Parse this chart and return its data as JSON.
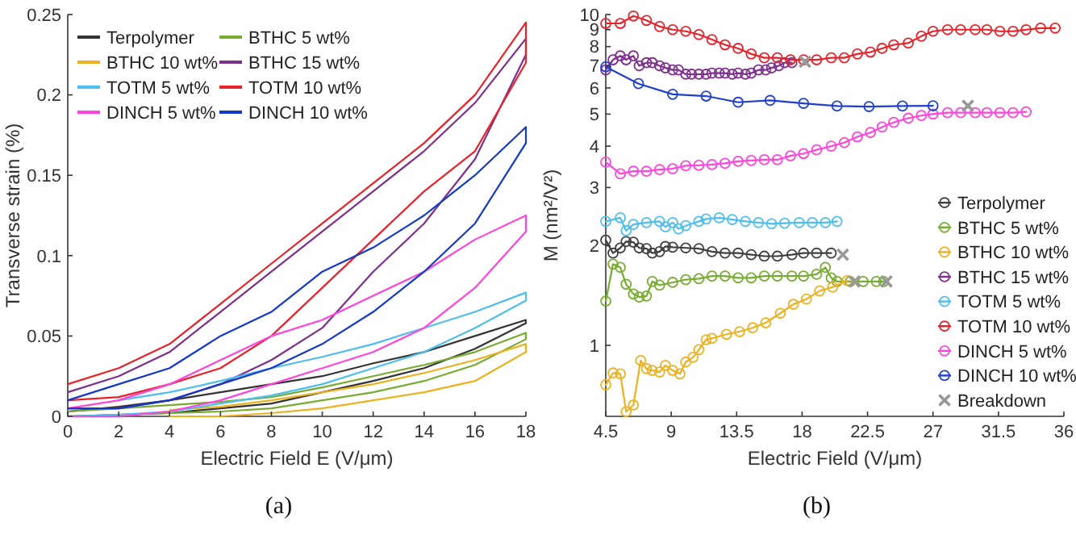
{
  "chart_data": [
    {
      "type": "line",
      "xlabel": "Electric Field E (V/μm)",
      "ylabel": "Transverse strain (%)",
      "annotations": [
        "(a)"
      ],
      "legend": "top left",
      "xlim": [
        0,
        18
      ],
      "ylim": [
        0,
        0.25
      ],
      "xticks": [
        0,
        2,
        4,
        6,
        8,
        10,
        12,
        14,
        16,
        18
      ],
      "yticks": [
        0,
        0.05,
        0.1,
        0.15,
        0.2,
        0.25
      ],
      "x": [
        0,
        2,
        4,
        6,
        8,
        10,
        12,
        14,
        16,
        18,
        18,
        16,
        14,
        12,
        10,
        8,
        6,
        4,
        2,
        0
      ],
      "series": [
        {
          "name": "Terpolymer",
          "color": "#333333",
          "values": [
            0,
            0.001,
            0.002,
            0.005,
            0.008,
            0.015,
            0.022,
            0.03,
            0.042,
            0.058,
            0.06,
            0.05,
            0.04,
            0.033,
            0.025,
            0.02,
            0.015,
            0.01,
            0.006,
            0.003
          ]
        },
        {
          "name": "BTHC 5 wt%",
          "color": "#77ac30",
          "values": [
            0,
            0.001,
            0.002,
            0.003,
            0.005,
            0.01,
            0.015,
            0.022,
            0.032,
            0.048,
            0.052,
            0.04,
            0.032,
            0.025,
            0.018,
            0.012,
            0.009,
            0.007,
            0.005,
            0.003
          ]
        },
        {
          "name": "BTHC 10 wt%",
          "color": "#edb120",
          "values": [
            null,
            null,
            0,
            0,
            0.002,
            0.005,
            0.01,
            0.015,
            0.022,
            0.04,
            0.045,
            0.035,
            0.027,
            0.02,
            0.015,
            0.01,
            0.006,
            0.004,
            null,
            null
          ]
        },
        {
          "name": "BTHC 15 wt%",
          "color": "#7e2f8e",
          "values": [
            0.005,
            0.005,
            0.01,
            0.02,
            0.035,
            0.055,
            0.09,
            0.12,
            0.16,
            0.225,
            0.235,
            0.195,
            0.165,
            0.14,
            0.115,
            0.09,
            0.065,
            0.04,
            0.025,
            0.015
          ]
        },
        {
          "name": "TOTM 5 wt%",
          "color": "#4dbeee",
          "values": [
            0,
            0.001,
            0.003,
            0.008,
            0.013,
            0.02,
            0.03,
            0.04,
            0.055,
            0.072,
            0.077,
            0.065,
            0.055,
            0.045,
            0.037,
            0.03,
            0.022,
            0.015,
            0.01,
            null
          ]
        },
        {
          "name": "TOTM 10 wt%",
          "color": "#e8222a",
          "values": [
            0.01,
            0.012,
            0.02,
            0.03,
            0.05,
            0.08,
            0.11,
            0.14,
            0.165,
            0.22,
            0.245,
            0.2,
            0.17,
            0.145,
            0.12,
            0.095,
            0.07,
            0.045,
            0.03,
            0.02
          ]
        },
        {
          "name": "DINCH 5 wt%",
          "color": "#ff44dd",
          "values": [
            0,
            0,
            0.003,
            0.01,
            0.02,
            0.03,
            0.04,
            0.055,
            0.08,
            0.115,
            0.125,
            0.11,
            0.09,
            0.075,
            0.06,
            0.05,
            0.035,
            0.02,
            0.01,
            0.005
          ]
        },
        {
          "name": "DINCH 10 wt%",
          "color": "#1438c8",
          "values": [
            0.005,
            0.005,
            0.01,
            0.02,
            0.03,
            0.045,
            0.065,
            0.09,
            0.12,
            0.17,
            0.18,
            0.15,
            0.125,
            0.105,
            0.09,
            0.065,
            0.05,
            0.03,
            0.02,
            0.01
          ]
        }
      ]
    },
    {
      "type": "line",
      "xlabel": "Electric Field (V/μm)",
      "ylabel": "M (nm²/V²)",
      "annotations": [
        "(b)"
      ],
      "legend": "bottom right",
      "log": "y",
      "marker": "circle",
      "xlim": [
        4.5,
        36
      ],
      "ylim": [
        0.61,
        10
      ],
      "xticks": [
        4.5,
        9,
        13.5,
        18,
        22.5,
        27,
        31.5,
        36
      ],
      "yticks": [
        1,
        2,
        3,
        4,
        5,
        6,
        7,
        8,
        9,
        10
      ],
      "series": [
        {
          "name": "Terpolymer",
          "color": "#404040",
          "x": [
            4.5,
            5.0,
            5.5,
            5.9,
            6.4,
            6.8,
            7.3,
            7.7,
            8.2,
            8.6,
            9.1,
            10.0,
            10.9,
            11.8,
            12.7,
            13.6,
            14.5,
            15.4,
            16.3,
            17.3,
            18.1,
            19.0,
            20.0
          ],
          "values": [
            2.08,
            1.9,
            1.97,
            2.06,
            2.05,
            1.97,
            1.96,
            1.9,
            1.92,
            1.99,
            1.98,
            1.97,
            1.96,
            1.92,
            1.9,
            1.9,
            1.88,
            1.86,
            1.86,
            1.88,
            1.9,
            1.9,
            1.9
          ]
        },
        {
          "name": "BTHC 5 wt%",
          "color": "#77ac30",
          "x": [
            4.5,
            5.0,
            5.5,
            5.9,
            6.4,
            6.8,
            7.3,
            7.7,
            8.2,
            9.1,
            10.0,
            10.9,
            11.8,
            12.7,
            13.6,
            14.5,
            15.4,
            16.3,
            17.3,
            18.1,
            19.0,
            19.6,
            20.0,
            20.4,
            21.3,
            22.2,
            23.1,
            23.6
          ],
          "values": [
            1.36,
            1.76,
            1.72,
            1.53,
            1.43,
            1.4,
            1.41,
            1.56,
            1.52,
            1.55,
            1.58,
            1.59,
            1.62,
            1.62,
            1.6,
            1.6,
            1.62,
            1.62,
            1.62,
            1.62,
            1.64,
            1.72,
            1.6,
            1.56,
            1.56,
            1.56,
            1.56,
            1.56
          ]
        },
        {
          "name": "BTHC 10 wt%",
          "color": "#edb120",
          "x": [
            4.5,
            5.0,
            5.5,
            5.9,
            6.4,
            6.9,
            7.3,
            7.7,
            8.2,
            8.6,
            9.1,
            9.6,
            10.0,
            10.5,
            10.9,
            11.4,
            11.8,
            12.8,
            13.7,
            14.6,
            15.5,
            16.5,
            17.4,
            18.3,
            19.2,
            20.1,
            21.1
          ],
          "values": [
            0.76,
            0.825,
            0.82,
            0.63,
            0.66,
            0.9,
            0.85,
            0.84,
            0.83,
            0.87,
            0.84,
            0.82,
            0.89,
            0.92,
            0.97,
            1.04,
            1.05,
            1.08,
            1.1,
            1.13,
            1.17,
            1.25,
            1.33,
            1.38,
            1.46,
            1.5,
            1.57
          ]
        },
        {
          "name": "BTHC 15 wt%",
          "color": "#7e2f8e",
          "x": [
            4.5,
            5.0,
            5.5,
            5.9,
            6.4,
            6.8,
            7.3,
            7.7,
            8.2,
            8.6,
            9.1,
            9.5,
            10.0,
            10.4,
            10.9,
            11.4,
            11.8,
            12.3,
            12.7,
            13.2,
            13.6,
            14.1,
            14.5,
            15.0,
            15.5,
            15.9,
            16.4,
            16.8,
            17.3
          ],
          "values": [
            6.8,
            7.3,
            7.5,
            7.3,
            7.5,
            7.0,
            7.15,
            7.15,
            7.0,
            6.9,
            6.8,
            6.8,
            6.6,
            6.6,
            6.6,
            6.6,
            6.65,
            6.65,
            6.65,
            6.6,
            6.65,
            6.6,
            6.65,
            6.8,
            6.8,
            6.9,
            7.0,
            7.15,
            7.15
          ]
        },
        {
          "name": "TOTM 5 wt%",
          "color": "#4dbeee",
          "x": [
            4.5,
            5.5,
            5.9,
            6.4,
            7.3,
            8.2,
            8.6,
            9.1,
            9.5,
            10.0,
            10.9,
            11.4,
            12.3,
            13.2,
            14.1,
            15.0,
            15.9,
            16.8,
            17.8,
            18.7,
            19.6,
            20.4
          ],
          "values": [
            2.37,
            2.43,
            2.22,
            2.32,
            2.35,
            2.37,
            2.28,
            2.35,
            2.25,
            2.3,
            2.37,
            2.41,
            2.43,
            2.4,
            2.37,
            2.35,
            2.33,
            2.34,
            2.35,
            2.35,
            2.35,
            2.37
          ]
        },
        {
          "name": "TOTM 10 wt%",
          "color": "#e8222a",
          "x": [
            4.5,
            5.5,
            6.4,
            7.3,
            8.2,
            9.1,
            10.0,
            10.9,
            11.8,
            12.7,
            13.6,
            14.5,
            15.4,
            16.3,
            17.2,
            18.1,
            19.0,
            20.0,
            20.9,
            21.8,
            22.7,
            23.5,
            24.3,
            25.3,
            26.2,
            27.0,
            28.0,
            28.9,
            29.9,
            30.7,
            31.6,
            32.5,
            33.4,
            34.4,
            35.4
          ],
          "values": [
            9.4,
            9.4,
            9.9,
            9.6,
            9.2,
            9.0,
            8.9,
            8.7,
            8.4,
            8.1,
            7.9,
            7.6,
            7.4,
            7.4,
            7.3,
            7.3,
            7.3,
            7.4,
            7.4,
            7.6,
            7.7,
            7.9,
            8.1,
            8.2,
            8.6,
            8.9,
            9.0,
            9.0,
            9.0,
            9.0,
            8.9,
            8.9,
            9.0,
            9.1,
            9.1
          ]
        },
        {
          "name": "DINCH 5 wt%",
          "color": "#ff44dd",
          "x": [
            4.5,
            5.5,
            6.4,
            7.3,
            8.2,
            9.1,
            10.0,
            10.9,
            11.8,
            12.7,
            13.6,
            14.5,
            15.4,
            16.3,
            17.2,
            18.1,
            19.0,
            20.0,
            20.9,
            21.8,
            22.7,
            23.5,
            24.3,
            25.3,
            26.2,
            27.0,
            28.0,
            28.9,
            29.9,
            30.7,
            31.6,
            32.5,
            33.4
          ],
          "values": [
            3.58,
            3.3,
            3.36,
            3.36,
            3.4,
            3.42,
            3.49,
            3.5,
            3.52,
            3.55,
            3.6,
            3.62,
            3.64,
            3.64,
            3.74,
            3.8,
            3.9,
            4.0,
            4.1,
            4.27,
            4.4,
            4.57,
            4.72,
            4.86,
            4.95,
            5.0,
            5.05,
            5.05,
            5.05,
            5.05,
            5.05,
            5.05,
            5.08
          ]
        },
        {
          "name": "DINCH 10 wt%",
          "color": "#1f3fcf",
          "x": [
            4.5,
            6.75,
            9.1,
            11.4,
            13.6,
            15.8,
            18.1,
            20.4,
            22.6,
            24.9,
            27.0
          ],
          "values": [
            6.95,
            6.18,
            5.74,
            5.67,
            5.43,
            5.5,
            5.39,
            5.29,
            5.27,
            5.29,
            5.3
          ]
        },
        {
          "name": "Breakdown",
          "type": "scatter",
          "marker": "cross",
          "color": "#999999",
          "x": [
            18.2,
            20.8,
            21.6,
            23.8,
            29.4
          ],
          "values": [
            7.2,
            1.88,
            1.56,
            1.56,
            5.3
          ]
        }
      ]
    }
  ]
}
